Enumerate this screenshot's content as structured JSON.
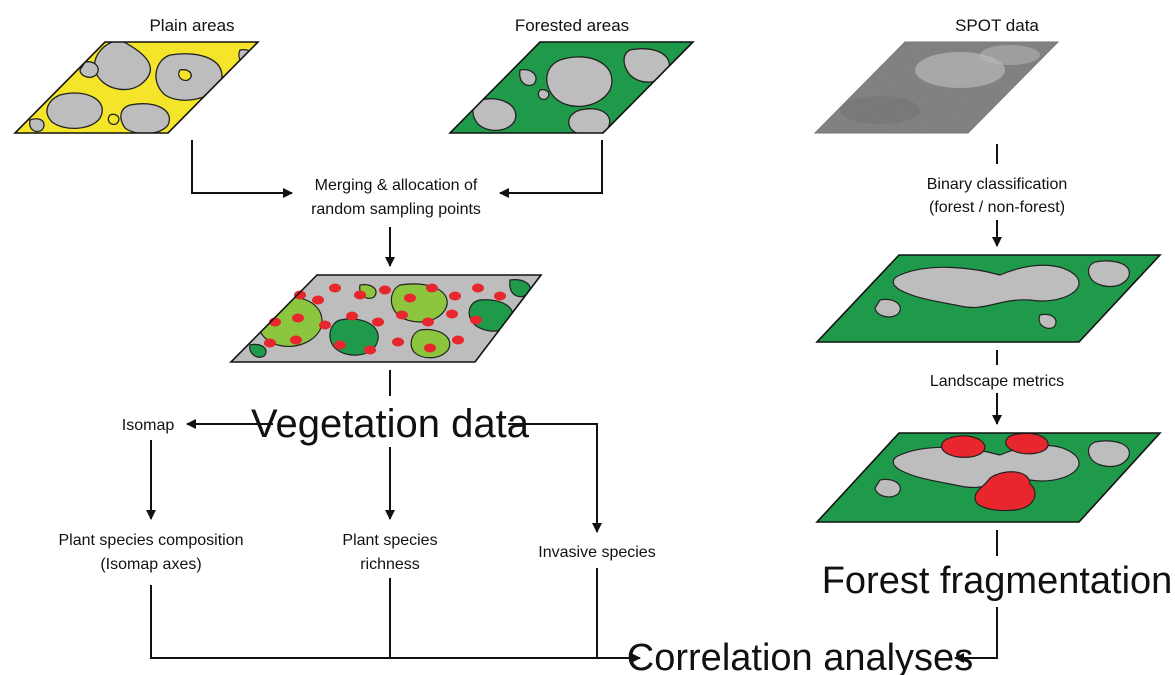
{
  "labels": {
    "plain_areas": "Plain areas",
    "forested_areas": "Forested areas",
    "spot_data": "SPOT data",
    "merging_line1": "Merging & allocation of",
    "merging_line2": "random sampling points",
    "binary_line1": "Binary classification",
    "binary_line2": "(forest / non-forest)",
    "landscape_metrics": "Landscape metrics",
    "vegetation_data": "Vegetation data",
    "isomap": "Isomap",
    "composition_line1": "Plant species composition",
    "composition_line2": "(Isomap axes)",
    "richness_line1": "Plant species",
    "richness_line2": "richness",
    "invasive_species": "Invasive species",
    "forest_fragmentation": "Forest fragmentation",
    "correlation_analyses": "Correlation analyses"
  },
  "colors": {
    "plain_fill": "#f5e52a",
    "forest_fill": "#1f9a4a",
    "nonforest_fill": "#bdbdbd",
    "merged_green": "#8cc63f",
    "sample_point": "#e8262d",
    "satellite_gray": "#8a8a8a"
  }
}
